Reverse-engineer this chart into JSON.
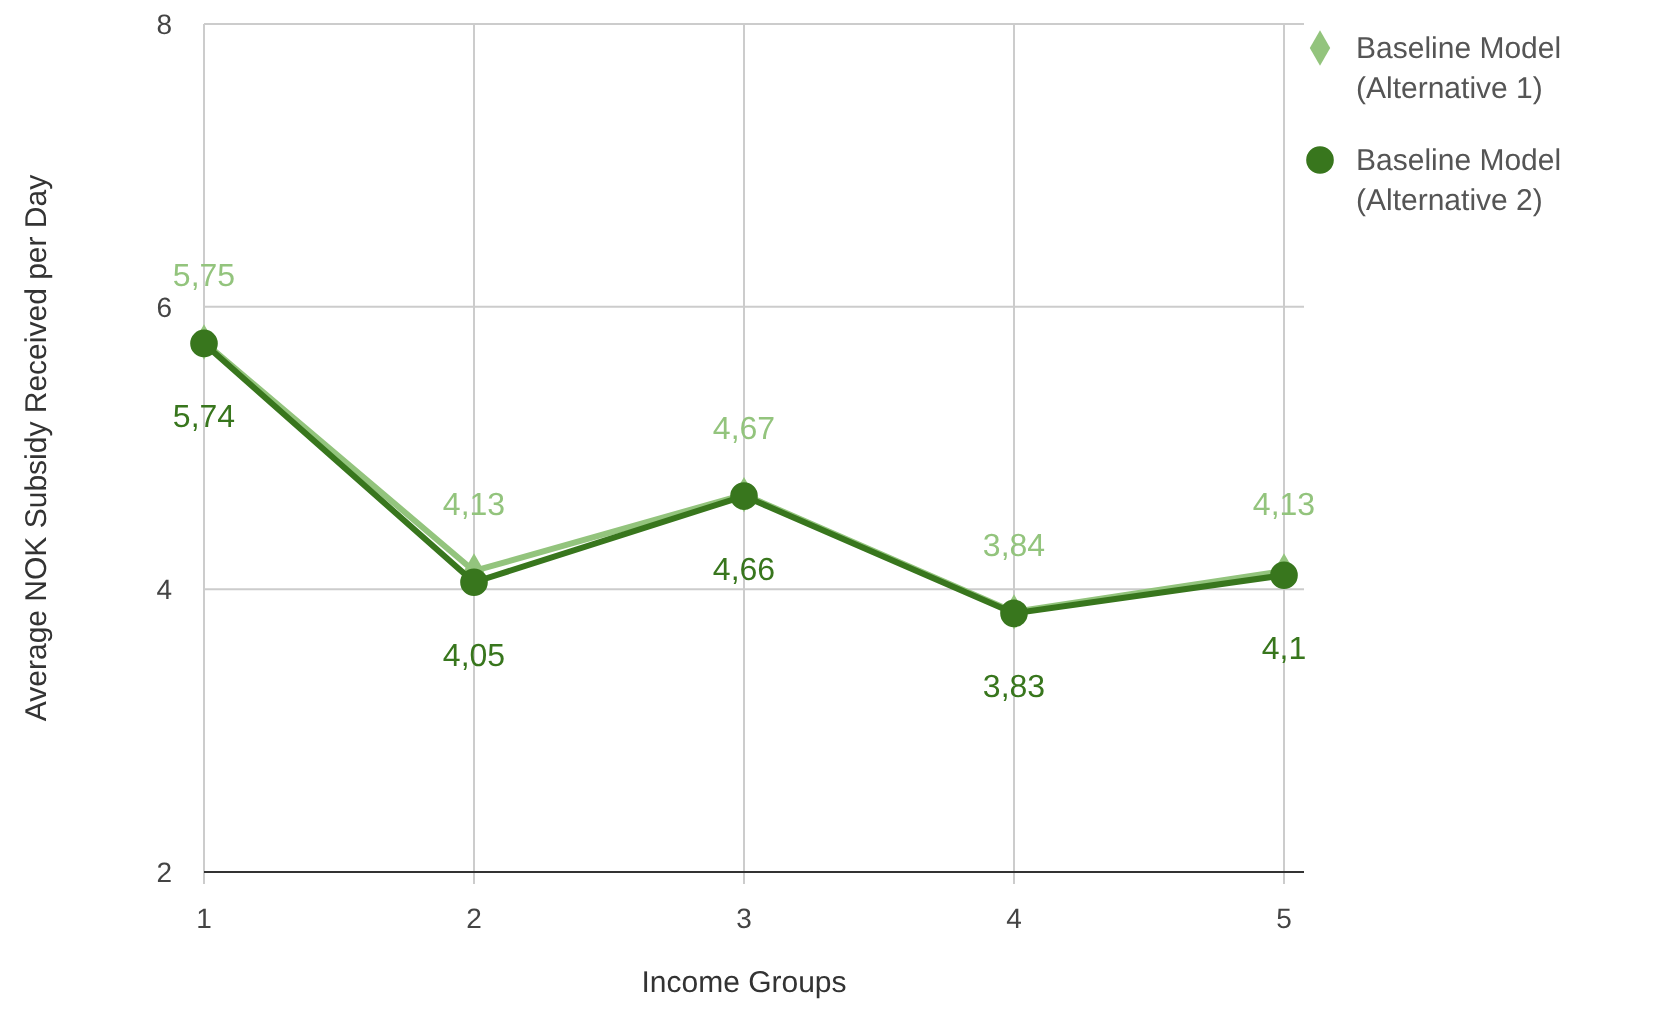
{
  "chart_data": {
    "type": "line",
    "xlabel": "Income Groups",
    "ylabel": "Average NOK Subsidy Received per Day",
    "x": [
      1,
      2,
      3,
      4,
      5
    ],
    "xlim": [
      1,
      5
    ],
    "xticks": [
      1,
      2,
      3,
      4,
      5
    ],
    "ylim": [
      2,
      8
    ],
    "yticks": [
      2,
      4,
      6,
      8
    ],
    "grid": true,
    "legend": "top right",
    "series": [
      {
        "name": "Baseline Model (Alternative 1)",
        "color": "#93c47d",
        "marker": "diamond",
        "values": [
          5.75,
          4.13,
          4.67,
          3.84,
          4.13
        ],
        "value_labels": [
          "5,75",
          "4,13",
          "4,67",
          "3,84",
          "4,13"
        ]
      },
      {
        "name": "Baseline Model (Alternative 2)",
        "color": "#38761d",
        "marker": "circle",
        "values": [
          5.74,
          4.05,
          4.66,
          3.83,
          4.1
        ],
        "value_labels": [
          "5,74",
          "4,05",
          "4,66",
          "3,83",
          "4,1"
        ]
      }
    ]
  }
}
